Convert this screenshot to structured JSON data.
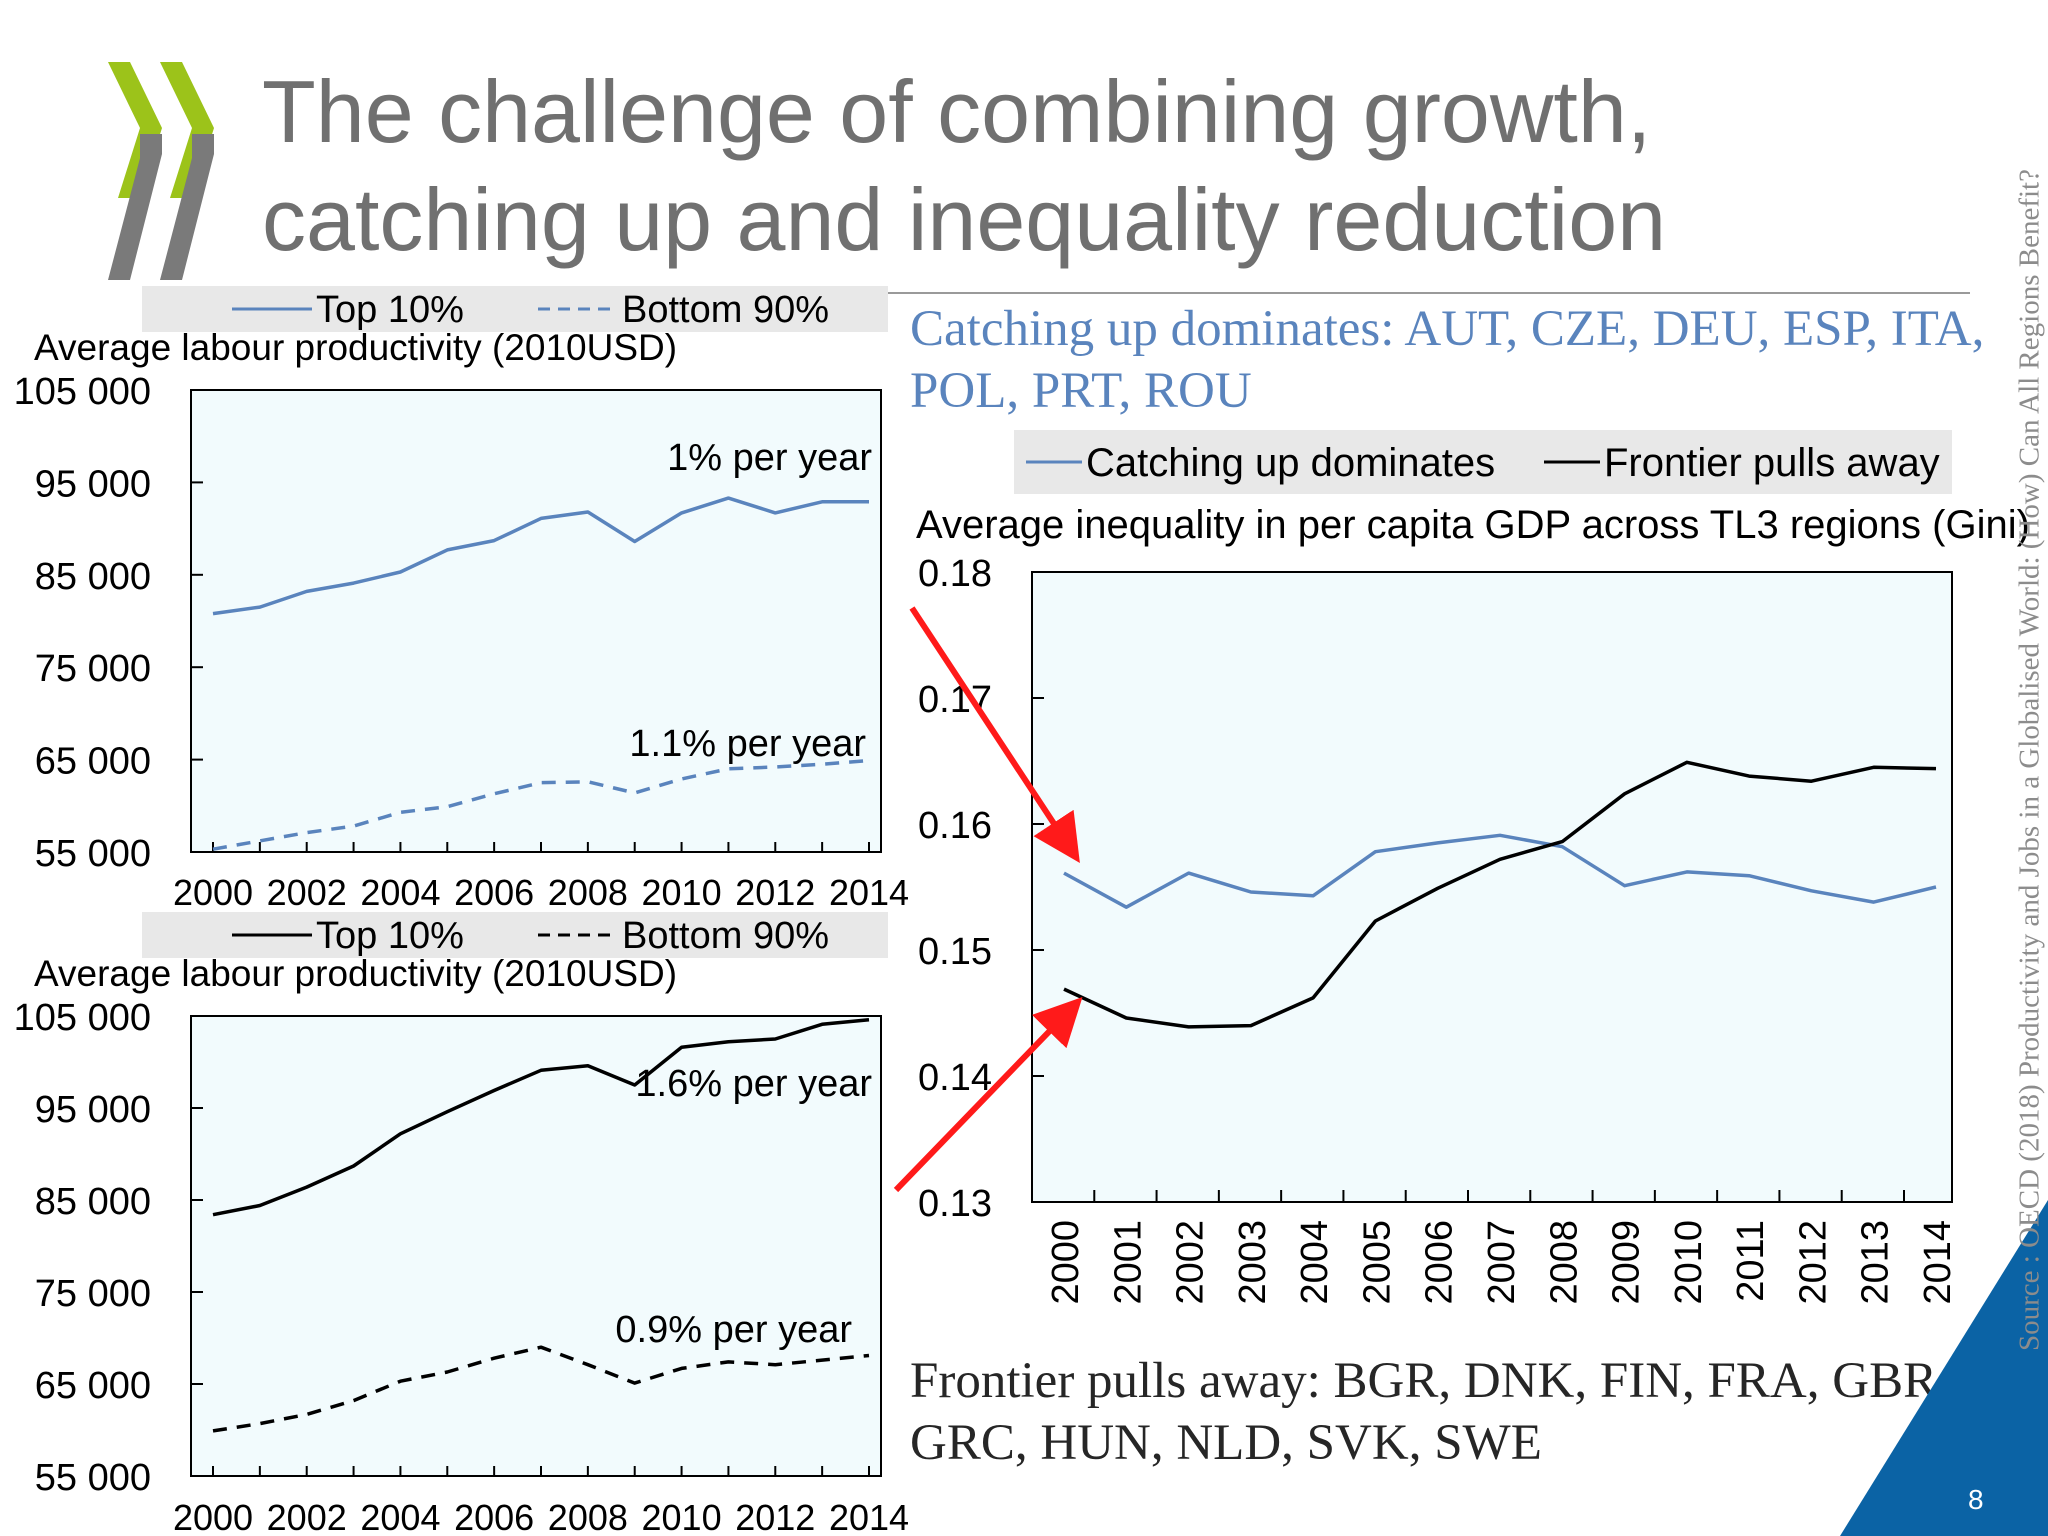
{
  "slide": {
    "title": "The challenge of combining growth, catching up and inequality reduction",
    "catching_up_text": "Catching up dominates: AUT, CZE, DEU, ESP, ITA, POL, PRT, ROU",
    "frontier_text": "Frontier pulls away: BGR, DNK, FIN, FRA, GBR, GRC, HUN, NLD, SVK, SWE",
    "source": "Source : OECD (2018) Productivity and Jobs in a Globalised World: (How) Can All Regions Benefit?",
    "page_number": "8"
  },
  "colors": {
    "blue_series": "#5a84bd",
    "black_series": "#000000",
    "plot_background": "#f2fbfd",
    "legend_background": "#e8e8e8",
    "arrow": "#ff1a1a",
    "logo_green": "#9cc31a",
    "logo_gray": "#777777",
    "corner_blue": "#0b63a5"
  },
  "chart_data": [
    {
      "type": "line",
      "ylabel": "Average labour productivity (2010USD)",
      "x": [
        2000,
        2001,
        2002,
        2003,
        2004,
        2005,
        2006,
        2007,
        2008,
        2009,
        2010,
        2011,
        2012,
        2013,
        2014
      ],
      "x_tick_labels": [
        "2000",
        "2002",
        "2004",
        "2006",
        "2008",
        "2010",
        "2012",
        "2014"
      ],
      "y_tick_labels": [
        "105 000",
        "95 000",
        "85 000",
        "75 000",
        "65 000",
        "55 000"
      ],
      "ylim": [
        55000,
        105000
      ],
      "legend_position": "top",
      "series": [
        {
          "name": "Top 10%",
          "style": "solid",
          "color": "#5a84bd",
          "values": [
            80800,
            81500,
            83200,
            84100,
            85300,
            87700,
            88700,
            91100,
            91800,
            88600,
            91700,
            93300,
            91700,
            92900,
            92900
          ]
        },
        {
          "name": "Bottom 90%",
          "style": "dashed",
          "color": "#5a84bd",
          "values": [
            55300,
            56200,
            57100,
            57800,
            59300,
            59900,
            61300,
            62500,
            62600,
            61400,
            62900,
            64000,
            64200,
            64500,
            64900
          ]
        }
      ],
      "annotations": [
        "1% per year",
        "1.1% per year"
      ]
    },
    {
      "type": "line",
      "ylabel": "Average labour productivity (2010USD)",
      "x": [
        2000,
        2001,
        2002,
        2003,
        2004,
        2005,
        2006,
        2007,
        2008,
        2009,
        2010,
        2011,
        2012,
        2013,
        2014
      ],
      "x_tick_labels": [
        "2000",
        "2002",
        "2004",
        "2006",
        "2008",
        "2010",
        "2012",
        "2014"
      ],
      "y_tick_labels": [
        "105 000",
        "95 000",
        "85 000",
        "75 000",
        "65 000",
        "55 000"
      ],
      "ylim": [
        55000,
        105000
      ],
      "legend_position": "top",
      "series": [
        {
          "name": "Top 10%",
          "style": "solid",
          "color": "#000000",
          "values": [
            83400,
            84400,
            86400,
            88700,
            92200,
            94600,
            96900,
            99100,
            99600,
            97500,
            101600,
            102200,
            102500,
            104100,
            104600
          ]
        },
        {
          "name": "Bottom 90%",
          "style": "dashed",
          "color": "#000000",
          "values": [
            59900,
            60700,
            61700,
            63200,
            65300,
            66300,
            67800,
            69000,
            67100,
            65100,
            66700,
            67400,
            67100,
            67600,
            68100
          ]
        }
      ],
      "annotations": [
        "1.6% per year",
        "0.9% per year"
      ]
    },
    {
      "type": "line",
      "ylabel": "Average inequality in per capita GDP across TL3 regions (Gini)",
      "x": [
        2000,
        2001,
        2002,
        2003,
        2004,
        2005,
        2006,
        2007,
        2008,
        2009,
        2010,
        2011,
        2012,
        2013,
        2014
      ],
      "x_tick_labels": [
        "2000",
        "2001",
        "2002",
        "2003",
        "2004",
        "2005",
        "2006",
        "2007",
        "2008",
        "2009",
        "2010",
        "2011",
        "2012",
        "2013",
        "2014"
      ],
      "y_tick_labels": [
        "0.18",
        "0.17",
        "0.16",
        "0.15",
        "0.14",
        "0.13"
      ],
      "ylim": [
        0.13,
        0.18
      ],
      "legend_position": "top",
      "series": [
        {
          "name": "Catching up dominates",
          "style": "solid",
          "color": "#5a84bd",
          "values": [
            0.1561,
            0.1534,
            0.1561,
            0.1546,
            0.1543,
            0.1578,
            0.1585,
            0.1591,
            0.1582,
            0.1551,
            0.1562,
            0.1559,
            0.1547,
            0.1538,
            0.155
          ]
        },
        {
          "name": "Frontier pulls away",
          "style": "solid",
          "color": "#000000",
          "values": [
            0.1469,
            0.1446,
            0.1439,
            0.144,
            0.1462,
            0.1523,
            0.1549,
            0.1572,
            0.1586,
            0.1624,
            0.1649,
            0.1638,
            0.1634,
            0.1645,
            0.1644
          ]
        }
      ]
    }
  ]
}
